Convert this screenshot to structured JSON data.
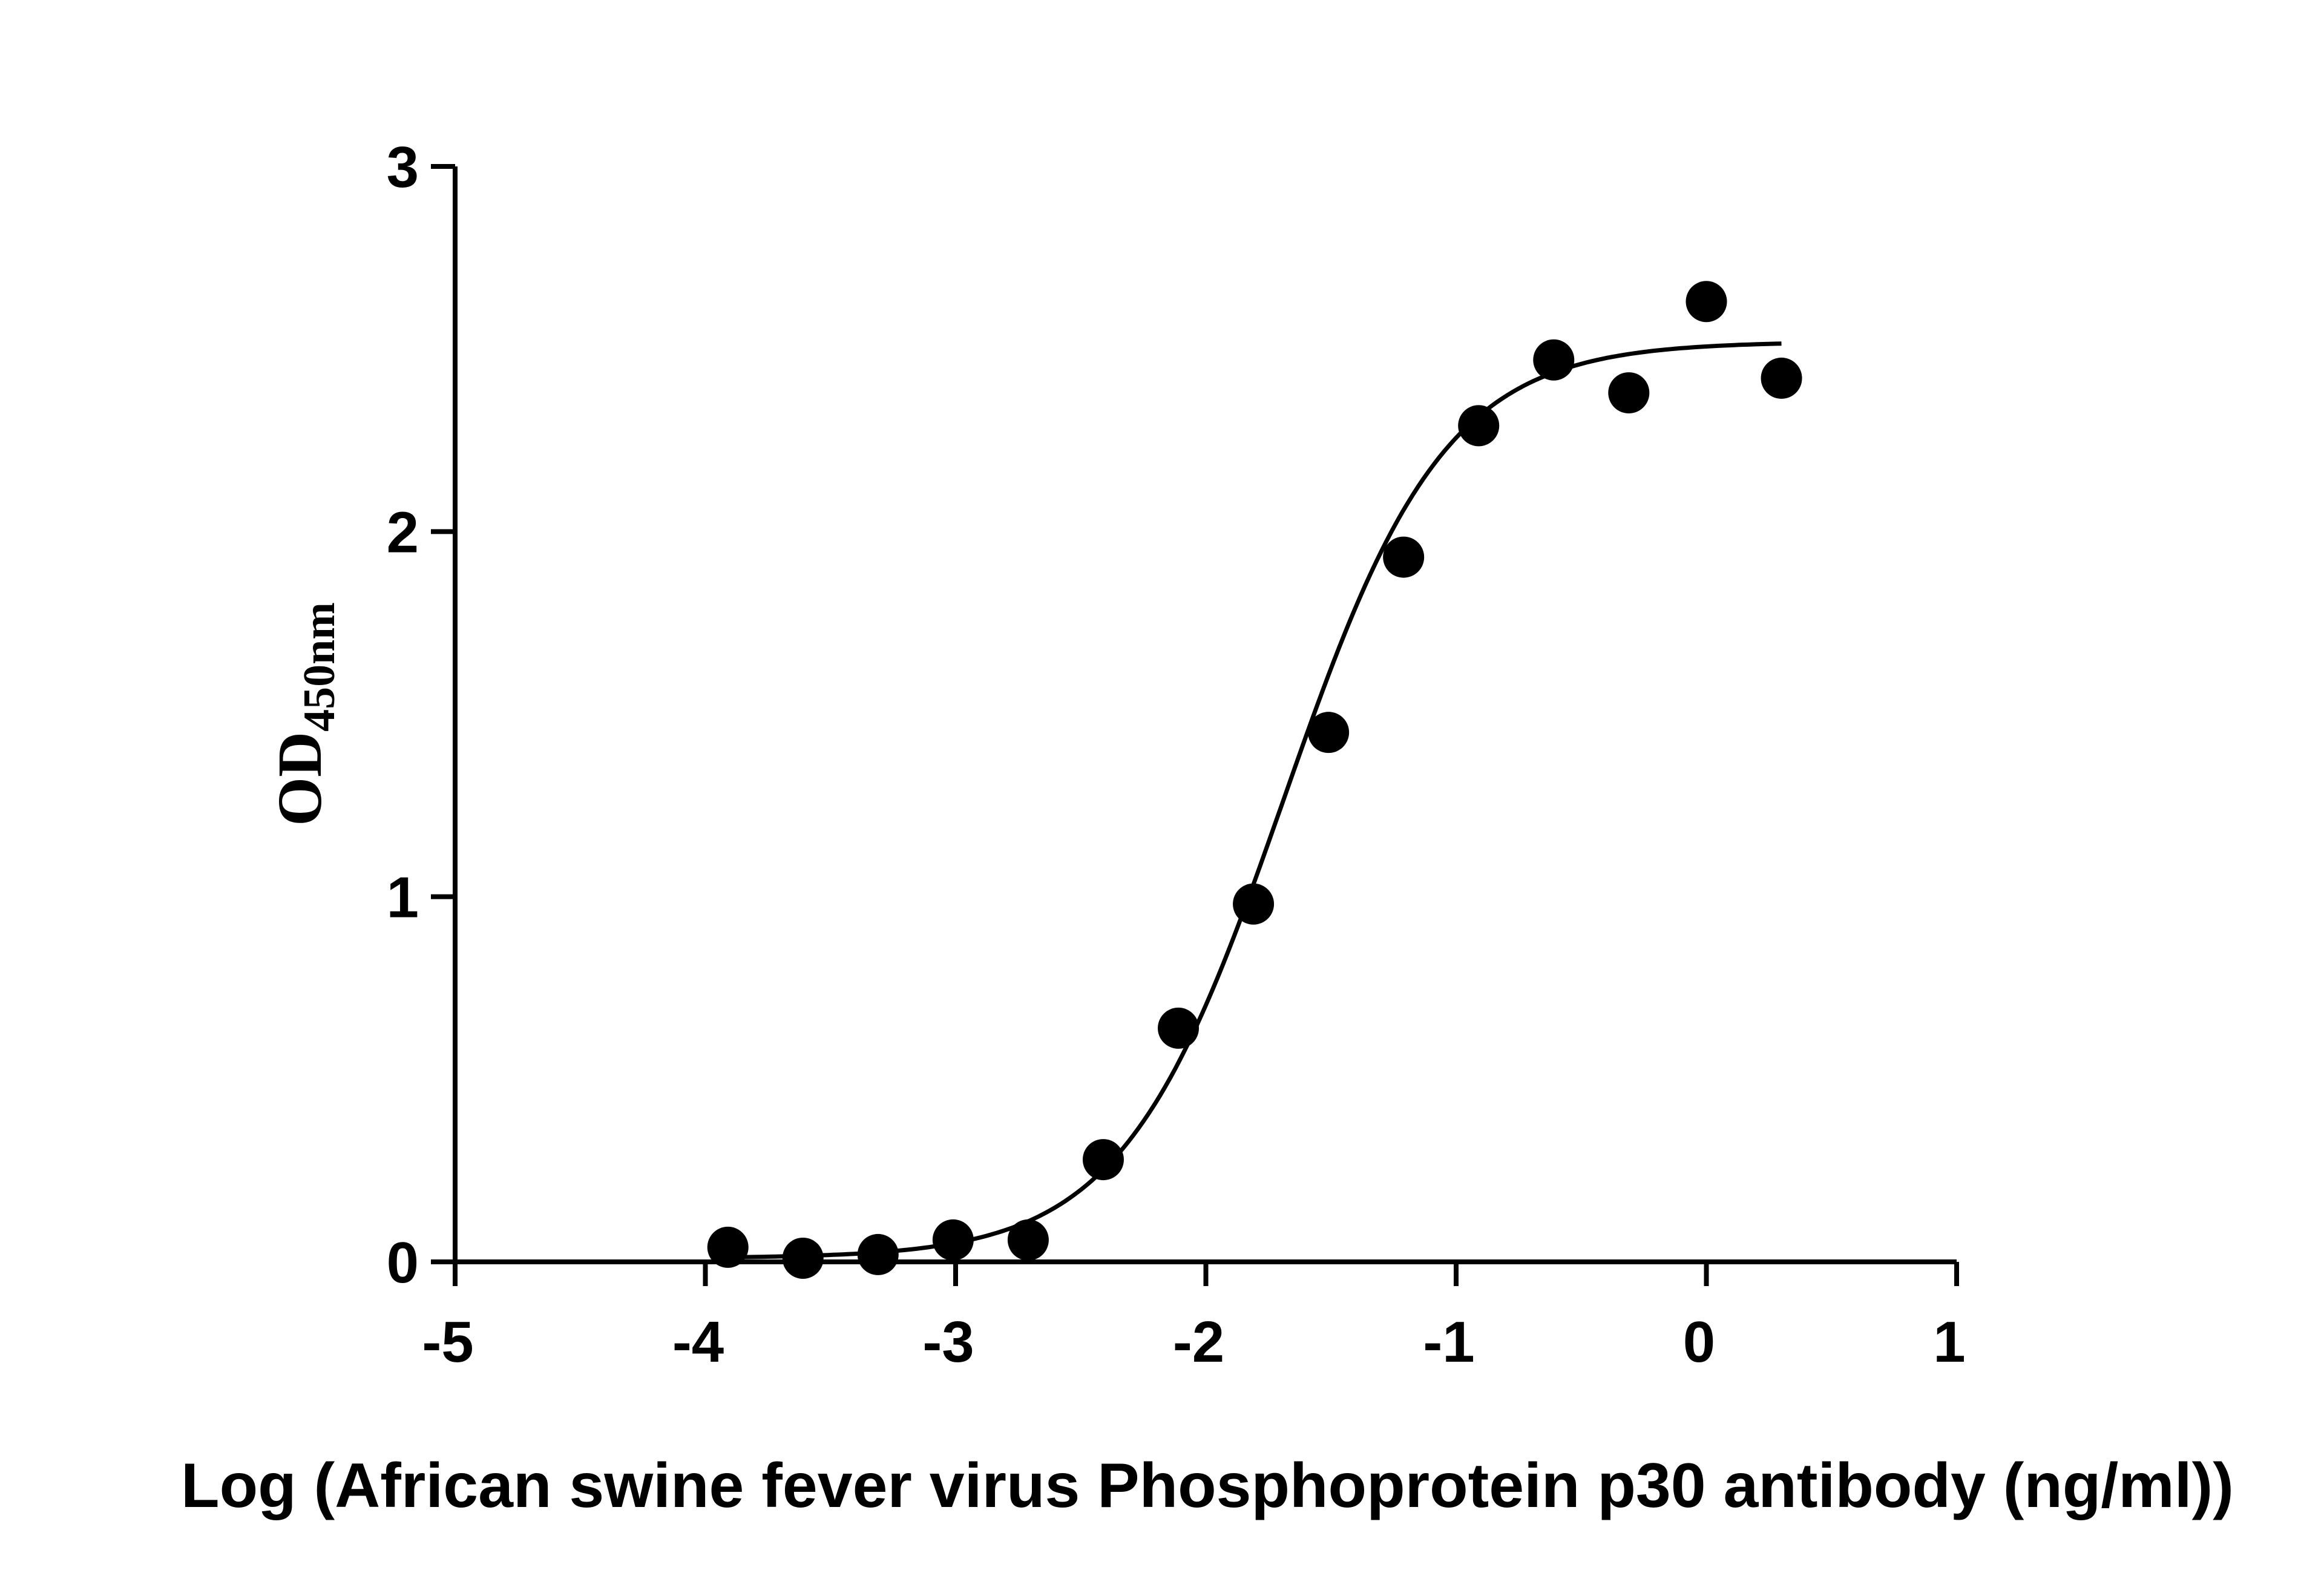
{
  "chart_data": {
    "type": "scatter",
    "xlabel": "Log (African swine fever virus Phosphoprotein p30 antibody (ng/ml))",
    "ylabel": "OD",
    "ylabel_subscript": "450nm",
    "xlim": [
      -5,
      1
    ],
    "ylim": [
      0,
      3
    ],
    "x_ticks": [
      "-5",
      "-4",
      "-3",
      "-2",
      "-1",
      "0",
      "1"
    ],
    "y_ticks": [
      "0",
      "1",
      "2",
      "3"
    ],
    "grid": false,
    "legend": "none",
    "series": [
      {
        "x": [
          -3.91,
          -3.61,
          -3.31,
          -3.01,
          -2.71,
          -2.41,
          -2.11,
          -1.81,
          -1.51,
          -1.21,
          -0.91,
          -0.61,
          -0.31,
          0.0,
          0.3
        ],
        "y": [
          0.04,
          0.01,
          0.02,
          0.06,
          0.06,
          0.28,
          0.64,
          0.98,
          1.45,
          1.93,
          2.29,
          2.47,
          2.38,
          2.63,
          2.42
        ]
      }
    ],
    "fit_curve": {
      "type": "four-parameter-logistic",
      "bottom": 0.01,
      "top": 2.52,
      "logEC50": -1.69,
      "hill_slope": 1.35,
      "x_range": [
        -3.91,
        0.3
      ]
    },
    "colors": {
      "points": "#000000",
      "curve": "#000000",
      "axes": "#000000"
    }
  }
}
